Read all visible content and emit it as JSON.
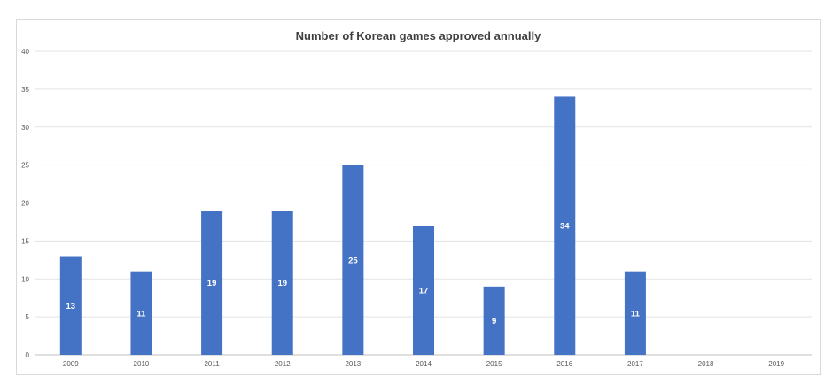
{
  "chart_data": {
    "type": "bar",
    "title": "Number of Korean games approved annually",
    "xlabel": "",
    "ylabel": "",
    "categories": [
      "2009",
      "2010",
      "2011",
      "2012",
      "2013",
      "2014",
      "2015",
      "2016",
      "2017",
      "2018",
      "2019"
    ],
    "values": [
      13,
      11,
      19,
      19,
      25,
      17,
      9,
      34,
      11,
      null,
      null
    ],
    "ylim": [
      0,
      40
    ],
    "yticks": [
      0,
      5,
      10,
      15,
      20,
      25,
      30,
      35,
      40
    ],
    "grid": true,
    "legend": "none",
    "bar_color": "#4472c4",
    "data_labels": [
      "13",
      "11",
      "19",
      "19",
      "25",
      "17",
      "9",
      "34",
      "11",
      "",
      ""
    ]
  }
}
